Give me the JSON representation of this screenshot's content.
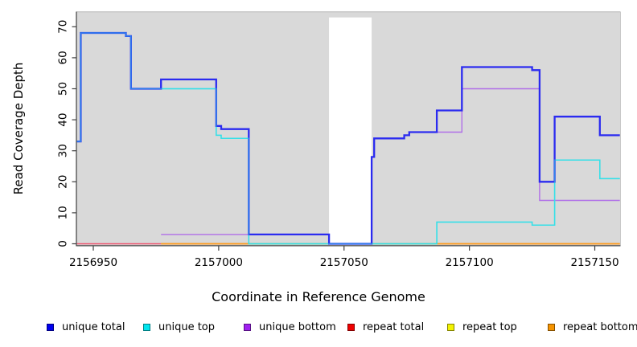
{
  "chart_data": {
    "type": "line",
    "step": true,
    "title": "",
    "xlabel": "Coordinate in Reference Genome",
    "ylabel": "Read Coverage Depth",
    "xlim": [
      2156943,
      2157160
    ],
    "ylim": [
      0,
      75
    ],
    "grid": false,
    "legend_position": "bottom",
    "x_ticks": [
      2156950,
      2157000,
      2157050,
      2157100,
      2157150
    ],
    "x_tick_labels": [
      "2156950",
      "2157000",
      "2157050",
      "2157100",
      "2157150"
    ],
    "y_ticks": [
      0,
      10,
      20,
      30,
      40,
      50,
      60,
      70
    ],
    "y_tick_labels": [
      "0",
      "10",
      "20",
      "30",
      "40",
      "50",
      "60",
      "70"
    ],
    "plot_bg_color": "#d9d9d9",
    "masked_region": {
      "x_start": 2157044,
      "x_end": 2157061,
      "color": "#ffffff"
    },
    "axis_color": "#3f3f3f",
    "series": [
      {
        "name": "unique total",
        "color": "#2b2bf0",
        "legend_color": "#0000ee",
        "width": 2.3,
        "points": [
          [
            2156943.5,
            33
          ],
          [
            2156945,
            68
          ],
          [
            2156963,
            67
          ],
          [
            2156965,
            50
          ],
          [
            2156977,
            53
          ],
          [
            2156999,
            38
          ],
          [
            2157001,
            37
          ],
          [
            2157012,
            3
          ],
          [
            2157044,
            0
          ],
          [
            2157061,
            28
          ],
          [
            2157062,
            34
          ],
          [
            2157074,
            35
          ],
          [
            2157076,
            36
          ],
          [
            2157087,
            43
          ],
          [
            2157097,
            57
          ],
          [
            2157125,
            56
          ],
          [
            2157128,
            20
          ],
          [
            2157134,
            41
          ],
          [
            2157152,
            35
          ],
          [
            2157160,
            35
          ]
        ]
      },
      {
        "name": "unique top",
        "color": "#35e0e8",
        "legend_color": "#00e5ee",
        "width": 1.5,
        "points": [
          [
            2156943.5,
            33
          ],
          [
            2156945,
            68
          ],
          [
            2156963,
            67
          ],
          [
            2156965,
            50
          ],
          [
            2156999,
            35
          ],
          [
            2157001,
            34
          ],
          [
            2157012,
            0
          ],
          [
            2157087,
            7
          ],
          [
            2157125,
            6
          ],
          [
            2157134,
            27
          ],
          [
            2157152,
            21
          ],
          [
            2157160,
            21
          ]
        ]
      },
      {
        "name": "unique bottom",
        "color": "#b06ee8",
        "legend_color": "#a020f0",
        "width": 1.4,
        "points": [
          [
            2156977,
            3
          ],
          [
            2157044,
            0
          ],
          [
            2157061,
            28
          ],
          [
            2157062,
            34
          ],
          [
            2157074,
            35
          ],
          [
            2157076,
            36
          ],
          [
            2157097,
            50
          ],
          [
            2157128,
            14
          ],
          [
            2157160,
            14
          ]
        ]
      },
      {
        "name": "repeat total",
        "color": "#ef5570",
        "legend_color": "#ee0000",
        "width": 1.4,
        "points": [
          [
            2156943.5,
            0
          ],
          [
            2157160,
            0
          ]
        ]
      },
      {
        "name": "repeat top",
        "color": "#f2ea3a",
        "legend_color": "#f2f200",
        "width": 1.2,
        "points": [
          [
            2156977,
            0
          ],
          [
            2157160,
            0
          ]
        ]
      },
      {
        "name": "repeat bottom",
        "color": "#ff9d1e",
        "legend_color": "#f59300",
        "width": 1.7,
        "points": [
          [
            2156977,
            0
          ],
          [
            2157160,
            0
          ]
        ]
      }
    ],
    "blend_segments_at_zero": {
      "comment_color": "#8fd48a",
      "segments": [
        [
          2157012,
          2157044
        ],
        [
          2157061,
          2157087
        ]
      ]
    },
    "legend": [
      {
        "label": "unique total"
      },
      {
        "label": "unique top"
      },
      {
        "label": "unique bottom"
      },
      {
        "label": "repeat total"
      },
      {
        "label": "repeat top"
      },
      {
        "label": "repeat bottom"
      }
    ]
  }
}
